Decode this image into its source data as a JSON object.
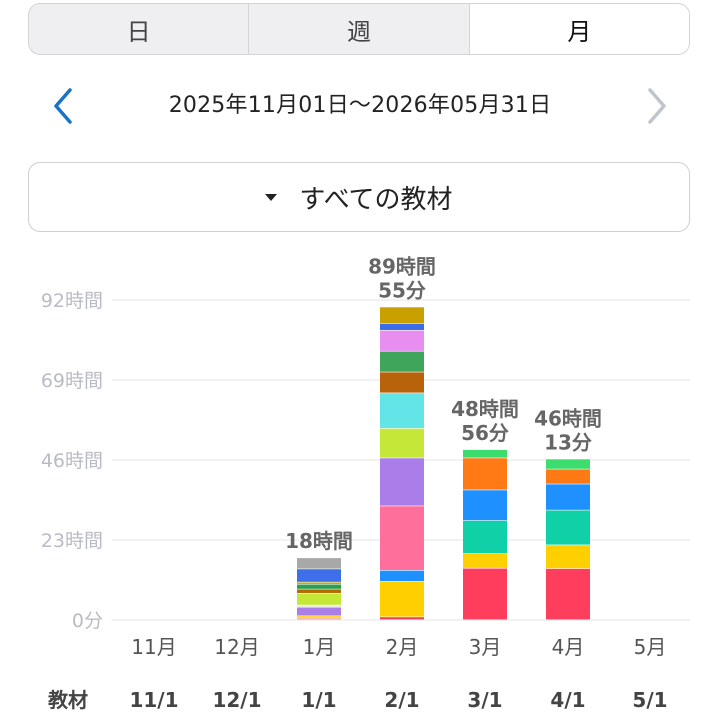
{
  "tabs": [
    {
      "label": "日",
      "active": false
    },
    {
      "label": "週",
      "active": false
    },
    {
      "label": "月",
      "active": true
    }
  ],
  "range": {
    "text": "2025年11月01日〜2026年05月31日",
    "prev_icon": "chevron-left-icon",
    "next_icon": "chevron-right-icon"
  },
  "filter": {
    "label": "すべての教材",
    "icon": "caret-down-icon"
  },
  "colors": {
    "accent": "#1a73c8",
    "disabled": "#c0c4cc"
  },
  "chart_data": {
    "type": "bar",
    "stacked": true,
    "categories": [
      "11月",
      "12月",
      "1月",
      "2月",
      "3月",
      "4月",
      "5月"
    ],
    "y_ticks": [
      "0分",
      "23時間",
      "46時間",
      "69時間",
      "92時間"
    ],
    "ylim": [
      0,
      92
    ],
    "grid": true,
    "totals": [
      "",
      "",
      "18時間",
      "89時間\n55分",
      "48時間\n56分",
      "46時間\n13分",
      ""
    ],
    "segments": [
      [],
      [],
      [
        {
          "v": 0.5,
          "c": "#f0a0a0"
        },
        {
          "v": 0.6,
          "c": "#ffd000"
        },
        {
          "v": 2.5,
          "c": "#a97ee8"
        },
        {
          "v": 0.6,
          "c": "#e8e8e8"
        },
        {
          "v": 3.4,
          "c": "#c5e838"
        },
        {
          "v": 1.2,
          "c": "#b36b00"
        },
        {
          "v": 1.4,
          "c": "#2e9e4e"
        },
        {
          "v": 0.6,
          "c": "#c8a000"
        },
        {
          "v": 3.8,
          "c": "#3f6fe8"
        },
        {
          "v": 3.2,
          "c": "#a8a8a8"
        }
      ],
      [
        {
          "v": 0.8,
          "c": "#e84060"
        },
        {
          "v": 10.2,
          "c": "#ffd000"
        },
        {
          "v": 3.2,
          "c": "#1e90ff"
        },
        {
          "v": 18.5,
          "c": "#ff6f9c"
        },
        {
          "v": 13.8,
          "c": "#a97ee8"
        },
        {
          "v": 8.5,
          "c": "#c5e838"
        },
        {
          "v": 10.2,
          "c": "#63e5e8"
        },
        {
          "v": 6.0,
          "c": "#b8620a"
        },
        {
          "v": 6.0,
          "c": "#3ea55a"
        },
        {
          "v": 6.0,
          "c": "#e88ef0"
        },
        {
          "v": 2.0,
          "c": "#3b6de8"
        },
        {
          "v": 4.7,
          "c": "#c8a000"
        }
      ],
      [
        {
          "v": 14.8,
          "c": "#ff3d5c"
        },
        {
          "v": 4.2,
          "c": "#ffd000"
        },
        {
          "v": 9.5,
          "c": "#10d0a8"
        },
        {
          "v": 8.8,
          "c": "#1e90ff"
        },
        {
          "v": 9.2,
          "c": "#ff7a14"
        },
        {
          "v": 2.4,
          "c": "#3ddc6e"
        }
      ],
      [
        {
          "v": 14.7,
          "c": "#ff3d5c"
        },
        {
          "v": 6.8,
          "c": "#ffd000"
        },
        {
          "v": 10.0,
          "c": "#10d0a8"
        },
        {
          "v": 7.5,
          "c": "#1e90ff"
        },
        {
          "v": 4.3,
          "c": "#ff7a14"
        },
        {
          "v": 2.9,
          "c": "#3ddc6e"
        }
      ],
      []
    ]
  },
  "bottom_row": {
    "label": "教材",
    "dates": [
      "11/1",
      "12/1",
      "1/1",
      "2/1",
      "3/1",
      "4/1",
      "5/1"
    ]
  }
}
